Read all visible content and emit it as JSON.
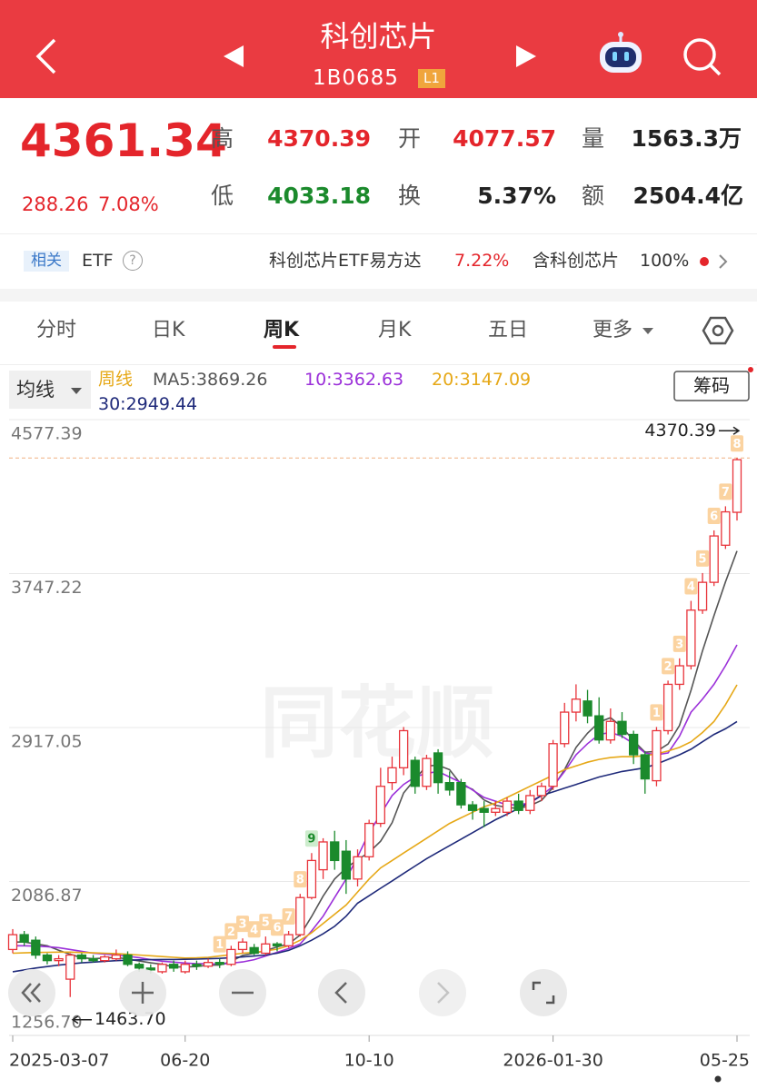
{
  "header": {
    "title": "科创芯片",
    "code": "1B0685",
    "badge": "L1"
  },
  "quote": {
    "price": "4361.34",
    "change": "288.26",
    "change_pct": "7.08%",
    "stats": [
      {
        "label": "高",
        "value": "4370.39"
      },
      {
        "label": "开",
        "value": "4077.57"
      },
      {
        "label": "量",
        "value": "1563.3万"
      },
      {
        "label": "低",
        "value": "4033.18"
      },
      {
        "label": "换",
        "value": "5.37%"
      },
      {
        "label": "额",
        "value": "2504.4亿"
      }
    ]
  },
  "related": {
    "tag": "相关",
    "etf": "ETF",
    "help": "?",
    "fund": "科创芯片ETF易方达",
    "fund_change": "7.22%",
    "holding_label": "含科创芯片",
    "holding": "100%"
  },
  "tabs": [
    "分时",
    "日K",
    "周K",
    "月K",
    "五日",
    "更多"
  ],
  "indicator": {
    "selector": "均线",
    "period": "周线",
    "chips": "筹码"
  },
  "watermark": "同花顺",
  "chart_data": {
    "type": "candlestick",
    "categories": [
      "2025-03-07",
      null,
      null,
      null,
      null,
      null,
      null,
      null,
      null,
      null,
      null,
      null,
      null,
      null,
      null,
      "06-20",
      null,
      null,
      null,
      null,
      null,
      null,
      null,
      null,
      null,
      null,
      null,
      null,
      null,
      null,
      null,
      "10-10",
      null,
      null,
      null,
      null,
      null,
      null,
      null,
      null,
      null,
      null,
      null,
      null,
      null,
      null,
      null,
      "2026-01-30",
      null,
      null,
      null,
      null,
      null,
      null,
      null,
      null,
      null,
      null,
      null,
      null,
      null,
      null,
      null,
      "05-25"
    ],
    "open": [
      1720,
      1800,
      1770,
      1690,
      1660,
      1560,
      1690,
      1670,
      1660,
      1670,
      1690,
      1640,
      1620,
      1600,
      1640,
      1600,
      1640,
      1630,
      1650,
      1640,
      1720,
      1730,
      1700,
      1750,
      1740,
      1800,
      2000,
      2150,
      2300,
      2250,
      2100,
      2220,
      2400,
      2620,
      2700,
      2740,
      2600,
      2780,
      2620,
      2620,
      2500,
      2480,
      2460,
      2460,
      2520,
      2470,
      2550,
      2600,
      2830,
      3000,
      3060,
      2980,
      2850,
      2950,
      2880,
      2770,
      2630,
      2900,
      3150,
      3250,
      3550,
      3700,
      3900,
      4077.57
    ],
    "high": [
      1830,
      1820,
      1790,
      1700,
      1690,
      1700,
      1700,
      1690,
      1690,
      1720,
      1710,
      1650,
      1640,
      1650,
      1660,
      1660,
      1660,
      1670,
      1670,
      1740,
      1780,
      1750,
      1790,
      1760,
      1820,
      2020,
      2240,
      2320,
      2360,
      2310,
      2260,
      2420,
      2700,
      2760,
      2920,
      2760,
      2770,
      2800,
      2680,
      2640,
      2520,
      2520,
      2520,
      2540,
      2560,
      2580,
      2620,
      2850,
      3050,
      3150,
      3120,
      3080,
      3020,
      3000,
      2900,
      2790,
      2920,
      3170,
      3290,
      3600,
      3750,
      3980,
      4110,
      4370.39
    ],
    "low": [
      1700,
      1740,
      1670,
      1640,
      1630,
      1463.7,
      1650,
      1650,
      1650,
      1660,
      1630,
      1600,
      1590,
      1590,
      1600,
      1590,
      1610,
      1620,
      1620,
      1630,
      1700,
      1690,
      1690,
      1710,
      1730,
      1790,
      1990,
      2100,
      2150,
      2020,
      2060,
      2200,
      2380,
      2580,
      2660,
      2560,
      2580,
      2560,
      2550,
      2480,
      2420,
      2380,
      2440,
      2440,
      2450,
      2450,
      2520,
      2580,
      2810,
      2950,
      2940,
      2830,
      2830,
      2860,
      2720,
      2560,
      2600,
      2880,
      3120,
      3230,
      3530,
      3680,
      3880,
      4033.18
    ],
    "close": [
      1800,
      1760,
      1690,
      1660,
      1670,
      1690,
      1670,
      1660,
      1680,
      1690,
      1640,
      1620,
      1610,
      1640,
      1620,
      1640,
      1630,
      1650,
      1640,
      1720,
      1760,
      1700,
      1750,
      1740,
      1800,
      2000,
      2200,
      2300,
      2200,
      2100,
      2220,
      2400,
      2600,
      2700,
      2900,
      2600,
      2750,
      2620,
      2580,
      2500,
      2470,
      2460,
      2480,
      2520,
      2470,
      2550,
      2600,
      2830,
      3000,
      3070,
      2980,
      2850,
      2950,
      2880,
      2770,
      2640,
      2900,
      3150,
      3250,
      3550,
      3700,
      3950,
      4080,
      4361.34
    ],
    "up_color": "#e8333a",
    "down_color": "#1b8a2c",
    "series": [
      {
        "name": "MA5:",
        "color": "#555555",
        "values": [
          1760,
          1760,
          1750,
          1740,
          1716,
          1694,
          1676,
          1670,
          1674,
          1678,
          1668,
          1658,
          1648,
          1640,
          1626,
          1626,
          1628,
          1636,
          1636,
          1656,
          1688,
          1700,
          1714,
          1734,
          1750,
          1798,
          1898,
          2008,
          2100,
          2160,
          2204,
          2244,
          2304,
          2404,
          2564,
          2640,
          2710,
          2714,
          2690,
          2610,
          2584,
          2526,
          2498,
          2486,
          2480,
          2496,
          2524,
          2594,
          2690,
          2810,
          2886,
          2946,
          2970,
          2920,
          2846,
          2784,
          2788,
          2828,
          2928,
          3118,
          3330,
          3521,
          3702,
          3869.26
        ]
      },
      {
        "name": "10:",
        "color": "#9b30d9",
        "values": [
          1740,
          1740,
          1738,
          1735,
          1730,
          1720,
          1710,
          1700,
          1695,
          1690,
          1684,
          1676,
          1665,
          1657,
          1652,
          1647,
          1643,
          1643,
          1640,
          1646,
          1653,
          1665,
          1685,
          1705,
          1725,
          1750,
          1820,
          1900,
          2000,
          2100,
          2220,
          2350,
          2450,
          2550,
          2610,
          2650,
          2670,
          2680,
          2650,
          2620,
          2580,
          2540,
          2520,
          2500,
          2500,
          2510,
          2550,
          2600,
          2680,
          2770,
          2830,
          2880,
          2890,
          2870,
          2830,
          2780,
          2770,
          2780,
          2870,
          3000,
          3070,
          3150,
          3250,
          3362.63
        ]
      },
      {
        "name": "20:",
        "color": "#e6a817",
        "values": [
          1700,
          1702,
          1704,
          1705,
          1706,
          1706,
          1704,
          1702,
          1700,
          1698,
          1694,
          1690,
          1686,
          1682,
          1678,
          1674,
          1675,
          1678,
          1685,
          1692,
          1700,
          1705,
          1712,
          1722,
          1740,
          1770,
          1810,
          1860,
          1910,
          1960,
          2030,
          2100,
          2160,
          2200,
          2240,
          2280,
          2320,
          2360,
          2400,
          2430,
          2460,
          2490,
          2510,
          2540,
          2570,
          2600,
          2630,
          2660,
          2690,
          2710,
          2730,
          2745,
          2755,
          2760,
          2760,
          2765,
          2775,
          2790,
          2810,
          2840,
          2890,
          2950,
          3040,
          3147.09
        ]
      },
      {
        "name": "30:",
        "color": "#1f2a7a",
        "values": [
          1600,
          1610,
          1620,
          1628,
          1636,
          1642,
          1648,
          1652,
          1656,
          1660,
          1662,
          1664,
          1665,
          1666,
          1666,
          1667,
          1668,
          1670,
          1672,
          1676,
          1680,
          1685,
          1690,
          1700,
          1715,
          1740,
          1770,
          1805,
          1845,
          1900,
          1970,
          2010,
          2050,
          2090,
          2130,
          2170,
          2210,
          2245,
          2280,
          2315,
          2350,
          2385,
          2420,
          2450,
          2480,
          2515,
          2550,
          2570,
          2590,
          2610,
          2630,
          2650,
          2665,
          2680,
          2690,
          2700,
          2720,
          2745,
          2770,
          2800,
          2840,
          2880,
          2910,
          2949.44
        ]
      }
    ],
    "ylim": [
      1256.7,
      4577.39
    ],
    "yticks": [
      4577.39,
      3747.22,
      2917.05,
      2086.87,
      {
        "value": 1256.7,
        "label": "1256.70"
      }
    ],
    "grid": true,
    "annotations": [
      {
        "value": 4370.39,
        "label": "4370.39"
      },
      {
        "value": 1463.7,
        "label": "1463.70"
      }
    ],
    "setup_counts": [
      null,
      null,
      null,
      null,
      null,
      null,
      null,
      null,
      null,
      null,
      null,
      null,
      null,
      null,
      null,
      null,
      null,
      null,
      1,
      2,
      3,
      4,
      5,
      6,
      7,
      8,
      9,
      null,
      null,
      null,
      null,
      null,
      null,
      null,
      null,
      null,
      null,
      null,
      null,
      null,
      null,
      null,
      null,
      null,
      null,
      null,
      null,
      null,
      null,
      null,
      null,
      null,
      null,
      null,
      null,
      null,
      1,
      2,
      3,
      4,
      5,
      6,
      7,
      8
    ]
  }
}
